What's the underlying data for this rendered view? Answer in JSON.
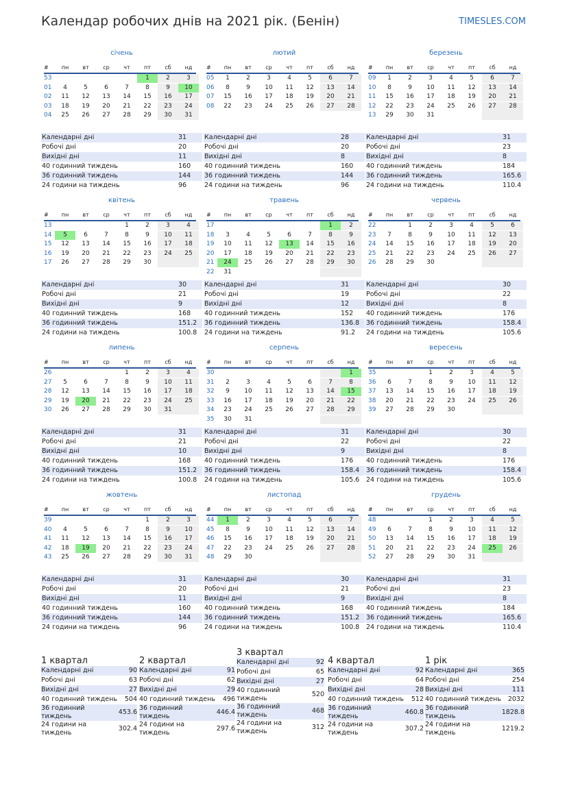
{
  "header": {
    "title": "Календар робочих днів на 2021 рік. (Бенін)",
    "site": "TIMESLES.COM"
  },
  "weekday_header": [
    "#",
    "пн",
    "вт",
    "ср",
    "чт",
    "пт",
    "сб",
    "нд"
  ],
  "stat_labels": [
    "Календарні дні",
    "Робочі дні",
    "Вихідні дні",
    "40 годинний тиждень",
    "36 годинний тиждень",
    "24 години на тиждень"
  ],
  "months": [
    {
      "name": "січень",
      "holidays": [
        1,
        10
      ],
      "weeks": [
        {
          "n": "53",
          "d": [
            null,
            null,
            null,
            null,
            1,
            2,
            3
          ]
        },
        {
          "n": "01",
          "d": [
            4,
            5,
            6,
            7,
            8,
            9,
            10
          ]
        },
        {
          "n": "02",
          "d": [
            11,
            12,
            13,
            14,
            15,
            16,
            17
          ]
        },
        {
          "n": "03",
          "d": [
            18,
            19,
            20,
            21,
            22,
            23,
            24
          ]
        },
        {
          "n": "04",
          "d": [
            25,
            26,
            27,
            28,
            29,
            30,
            31
          ]
        }
      ],
      "stats": [
        31,
        20,
        11,
        160,
        144,
        96
      ]
    },
    {
      "name": "лютий",
      "holidays": [],
      "weeks": [
        {
          "n": "05",
          "d": [
            1,
            2,
            3,
            4,
            5,
            6,
            7
          ]
        },
        {
          "n": "06",
          "d": [
            8,
            9,
            10,
            11,
            12,
            13,
            14
          ]
        },
        {
          "n": "07",
          "d": [
            15,
            16,
            17,
            18,
            19,
            20,
            21
          ]
        },
        {
          "n": "08",
          "d": [
            22,
            23,
            24,
            25,
            26,
            27,
            28
          ]
        }
      ],
      "stats": [
        28,
        20,
        8,
        160,
        144,
        96
      ]
    },
    {
      "name": "березень",
      "holidays": [],
      "weeks": [
        {
          "n": "09",
          "d": [
            1,
            2,
            3,
            4,
            5,
            6,
            7
          ]
        },
        {
          "n": "10",
          "d": [
            8,
            9,
            10,
            11,
            12,
            13,
            14
          ]
        },
        {
          "n": "11",
          "d": [
            15,
            16,
            17,
            18,
            19,
            20,
            21
          ]
        },
        {
          "n": "12",
          "d": [
            22,
            23,
            24,
            25,
            26,
            27,
            28
          ]
        },
        {
          "n": "13",
          "d": [
            29,
            30,
            31,
            null,
            null,
            null,
            null
          ]
        }
      ],
      "stats": [
        31,
        23,
        8,
        184,
        165.6,
        110.4
      ]
    },
    {
      "name": "квітень",
      "holidays": [
        5
      ],
      "weeks": [
        {
          "n": "13",
          "d": [
            null,
            null,
            null,
            1,
            2,
            3,
            4
          ]
        },
        {
          "n": "14",
          "d": [
            5,
            6,
            7,
            8,
            9,
            10,
            11
          ]
        },
        {
          "n": "15",
          "d": [
            12,
            13,
            14,
            15,
            16,
            17,
            18
          ]
        },
        {
          "n": "16",
          "d": [
            19,
            20,
            21,
            22,
            23,
            24,
            25
          ]
        },
        {
          "n": "17",
          "d": [
            26,
            27,
            28,
            29,
            30,
            null,
            null
          ]
        }
      ],
      "stats": [
        30,
        21,
        9,
        168,
        151.2,
        100.8
      ]
    },
    {
      "name": "травень",
      "holidays": [
        1,
        13,
        24
      ],
      "weeks": [
        {
          "n": "17",
          "d": [
            null,
            null,
            null,
            null,
            null,
            1,
            2
          ]
        },
        {
          "n": "18",
          "d": [
            3,
            4,
            5,
            6,
            7,
            8,
            9
          ]
        },
        {
          "n": "19",
          "d": [
            10,
            11,
            12,
            13,
            14,
            15,
            16
          ]
        },
        {
          "n": "20",
          "d": [
            17,
            18,
            19,
            20,
            21,
            22,
            23
          ]
        },
        {
          "n": "21",
          "d": [
            24,
            25,
            26,
            27,
            28,
            29,
            30
          ]
        },
        {
          "n": "22",
          "d": [
            31,
            null,
            null,
            null,
            null,
            null,
            null
          ]
        }
      ],
      "stats": [
        31,
        19,
        12,
        152,
        136.8,
        91.2
      ]
    },
    {
      "name": "червень",
      "holidays": [],
      "weeks": [
        {
          "n": "22",
          "d": [
            null,
            1,
            2,
            3,
            4,
            5,
            6
          ]
        },
        {
          "n": "23",
          "d": [
            7,
            8,
            9,
            10,
            11,
            12,
            13
          ]
        },
        {
          "n": "24",
          "d": [
            14,
            15,
            16,
            17,
            18,
            19,
            20
          ]
        },
        {
          "n": "25",
          "d": [
            21,
            22,
            23,
            24,
            25,
            26,
            27
          ]
        },
        {
          "n": "26",
          "d": [
            28,
            29,
            30,
            null,
            null,
            null,
            null
          ]
        }
      ],
      "stats": [
        30,
        22,
        8,
        176,
        158.4,
        105.6
      ]
    },
    {
      "name": "липень",
      "holidays": [
        20
      ],
      "weeks": [
        {
          "n": "26",
          "d": [
            null,
            null,
            null,
            1,
            2,
            3,
            4
          ]
        },
        {
          "n": "27",
          "d": [
            5,
            6,
            7,
            8,
            9,
            10,
            11
          ]
        },
        {
          "n": "28",
          "d": [
            12,
            13,
            14,
            15,
            16,
            17,
            18
          ]
        },
        {
          "n": "29",
          "d": [
            19,
            20,
            21,
            22,
            23,
            24,
            25
          ]
        },
        {
          "n": "30",
          "d": [
            26,
            27,
            28,
            29,
            30,
            31,
            null
          ]
        }
      ],
      "stats": [
        31,
        21,
        10,
        168,
        151.2,
        100.8
      ]
    },
    {
      "name": "серпень",
      "holidays": [
        1,
        15
      ],
      "weeks": [
        {
          "n": "30",
          "d": [
            null,
            null,
            null,
            null,
            null,
            null,
            1
          ]
        },
        {
          "n": "31",
          "d": [
            2,
            3,
            4,
            5,
            6,
            7,
            8
          ]
        },
        {
          "n": "32",
          "d": [
            9,
            10,
            11,
            12,
            13,
            14,
            15
          ]
        },
        {
          "n": "33",
          "d": [
            16,
            17,
            18,
            19,
            20,
            21,
            22
          ]
        },
        {
          "n": "34",
          "d": [
            23,
            24,
            25,
            26,
            27,
            28,
            29
          ]
        },
        {
          "n": "35",
          "d": [
            30,
            31,
            null,
            null,
            null,
            null,
            null
          ]
        }
      ],
      "stats": [
        31,
        22,
        9,
        176,
        158.4,
        105.6
      ]
    },
    {
      "name": "вересень",
      "holidays": [],
      "weeks": [
        {
          "n": "35",
          "d": [
            null,
            null,
            1,
            2,
            3,
            4,
            5
          ]
        },
        {
          "n": "36",
          "d": [
            6,
            7,
            8,
            9,
            10,
            11,
            12
          ]
        },
        {
          "n": "37",
          "d": [
            13,
            14,
            15,
            16,
            17,
            18,
            19
          ]
        },
        {
          "n": "38",
          "d": [
            20,
            21,
            22,
            23,
            24,
            25,
            26
          ]
        },
        {
          "n": "39",
          "d": [
            27,
            28,
            29,
            30,
            null,
            null,
            null
          ]
        }
      ],
      "stats": [
        30,
        22,
        8,
        176,
        158.4,
        105.6
      ]
    },
    {
      "name": "жовтень",
      "holidays": [
        19
      ],
      "weeks": [
        {
          "n": "39",
          "d": [
            null,
            null,
            null,
            null,
            1,
            2,
            3
          ]
        },
        {
          "n": "40",
          "d": [
            4,
            5,
            6,
            7,
            8,
            9,
            10
          ]
        },
        {
          "n": "41",
          "d": [
            11,
            12,
            13,
            14,
            15,
            16,
            17
          ]
        },
        {
          "n": "42",
          "d": [
            18,
            19,
            20,
            21,
            22,
            23,
            24
          ]
        },
        {
          "n": "43",
          "d": [
            25,
            26,
            27,
            28,
            29,
            30,
            31
          ]
        }
      ],
      "stats": [
        31,
        20,
        11,
        160,
        144,
        96
      ]
    },
    {
      "name": "листопад",
      "holidays": [
        1
      ],
      "weeks": [
        {
          "n": "44",
          "d": [
            1,
            2,
            3,
            4,
            5,
            6,
            7
          ]
        },
        {
          "n": "45",
          "d": [
            8,
            9,
            10,
            11,
            12,
            13,
            14
          ]
        },
        {
          "n": "46",
          "d": [
            15,
            16,
            17,
            18,
            19,
            20,
            21
          ]
        },
        {
          "n": "47",
          "d": [
            22,
            23,
            24,
            25,
            26,
            27,
            28
          ]
        },
        {
          "n": "48",
          "d": [
            29,
            30,
            null,
            null,
            null,
            null,
            null
          ]
        }
      ],
      "stats": [
        30,
        21,
        9,
        168,
        151.2,
        100.8
      ]
    },
    {
      "name": "грудень",
      "holidays": [
        25
      ],
      "weeks": [
        {
          "n": "48",
          "d": [
            null,
            null,
            1,
            2,
            3,
            4,
            5
          ]
        },
        {
          "n": "49",
          "d": [
            6,
            7,
            8,
            9,
            10,
            11,
            12
          ]
        },
        {
          "n": "50",
          "d": [
            13,
            14,
            15,
            16,
            17,
            18,
            19
          ]
        },
        {
          "n": "51",
          "d": [
            20,
            21,
            22,
            23,
            24,
            25,
            26
          ]
        },
        {
          "n": "52",
          "d": [
            27,
            28,
            29,
            30,
            31,
            null,
            null
          ]
        }
      ],
      "stats": [
        31,
        23,
        8,
        184,
        165.6,
        110.4
      ]
    }
  ],
  "summary": [
    {
      "title": "1 квартал",
      "values": [
        90,
        63,
        27,
        504,
        453.6,
        302.4
      ]
    },
    {
      "title": "2 квартал",
      "values": [
        91,
        62,
        29,
        496,
        446.4,
        297.6
      ]
    },
    {
      "title": "3 квартал",
      "values": [
        92,
        65,
        27,
        520,
        468,
        312
      ]
    },
    {
      "title": "4 квартал",
      "values": [
        92,
        64,
        28,
        512,
        460.8,
        307.2
      ]
    },
    {
      "title": "1 рік",
      "values": [
        365,
        254,
        111,
        2032,
        1828.8,
        1219.2
      ]
    }
  ]
}
